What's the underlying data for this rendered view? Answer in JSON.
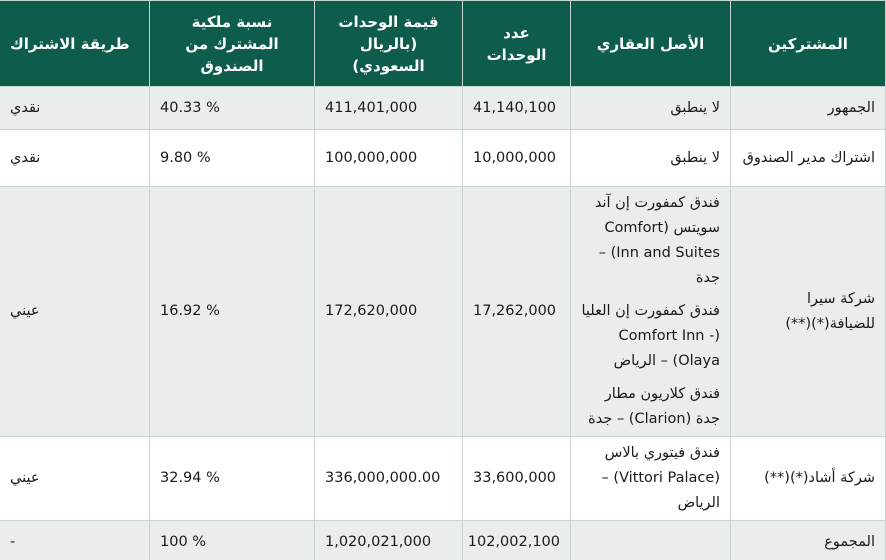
{
  "headers": {
    "subscribers": "المشتركين",
    "asset": "الأصل العقاري",
    "units": "عدد الوحدات",
    "value": "قيمة الوحدات (بالريال السعودي)",
    "ownership": "نسبة ملكية المشترك من الصندوق",
    "method": "طريقة الاشتراك"
  },
  "rows": [
    {
      "subscriber": "الجمهور",
      "asset": [
        "لا ينطبق"
      ],
      "units": "41,140,100",
      "value": "411,401,000",
      "ownership": "% 40.33",
      "method": "نقدي"
    },
    {
      "subscriber": "اشتراك مدير الصندوق",
      "asset": [
        "لا ينطبق"
      ],
      "units": "10,000,000",
      "value": "100,000,000",
      "ownership": "% 9.80",
      "method": "نقدي"
    },
    {
      "subscriber": "شركة سيرا للضيافة(*)(**)",
      "asset": [
        "فندق كمفورت إن آند سويتس (Comfort Inn and Suites) – جدة",
        "فندق كمفورت إن العليا (Comfort Inn - Olaya) – الرياض",
        "فندق كلاريون مطار جدة (Clarion) – جدة"
      ],
      "units": "17,262,000",
      "value": "172,620,000",
      "ownership": "% 16.92",
      "method": "عيني"
    },
    {
      "subscriber": "شركة أشاد(*)(**)",
      "asset": [
        "فندق فيتوري بالاس (Vittori Palace) – الرياض"
      ],
      "units": "33,600,000",
      "value": "336,000,000.00",
      "ownership": "% 32.94",
      "method": "عيني"
    },
    {
      "subscriber": "المجموع",
      "asset": [],
      "units": "102,002,100",
      "value": "1,020,021,000",
      "ownership": "% 100",
      "method": "-"
    }
  ]
}
